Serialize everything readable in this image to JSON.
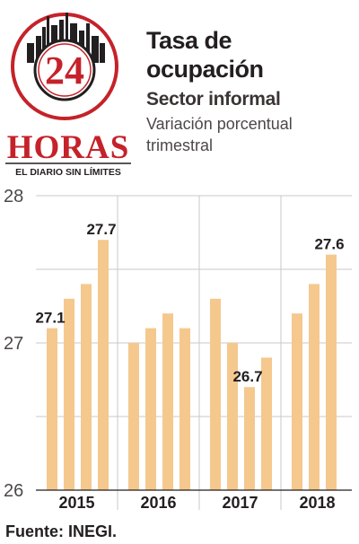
{
  "logo": {
    "number": "24",
    "brand": "HORAS",
    "tagline": "EL DIARIO SIN LÍMITES",
    "colors": {
      "red": "#c5222a",
      "dark": "#231f20"
    }
  },
  "header": {
    "title_line1": "Tasa de",
    "title_line2": "ocupación",
    "subtitle": "Sector informal",
    "description_line1": "Variación porcentual",
    "description_line2": "trimestral"
  },
  "chart_data": {
    "type": "bar",
    "title": "Tasa de ocupación",
    "subtitle": "Sector informal",
    "description": "Variación porcentual trimestral",
    "groups": [
      "2015",
      "2016",
      "2017",
      "2018"
    ],
    "series": [
      {
        "values": [
          27.1,
          27.3,
          27.4,
          27.7,
          27.0,
          27.1,
          27.2,
          27.1,
          27.3,
          27.0,
          26.7,
          26.9,
          27.2,
          27.4,
          27.6
        ]
      }
    ],
    "group_sizes": [
      4,
      4,
      4,
      3
    ],
    "ylim": [
      26,
      28
    ],
    "yticks": [
      "26",
      "27",
      "28"
    ],
    "data_labels": [
      {
        "index": 0,
        "text": "27.1"
      },
      {
        "index": 3,
        "text": "27.7"
      },
      {
        "index": 10,
        "text": "26.7"
      },
      {
        "index": 14,
        "text": "27.6"
      }
    ],
    "bar_color": "#f5c88e",
    "grid": true,
    "grid_color": "#c9c9c9"
  },
  "footer": {
    "source": "Fuente: INEGI."
  }
}
